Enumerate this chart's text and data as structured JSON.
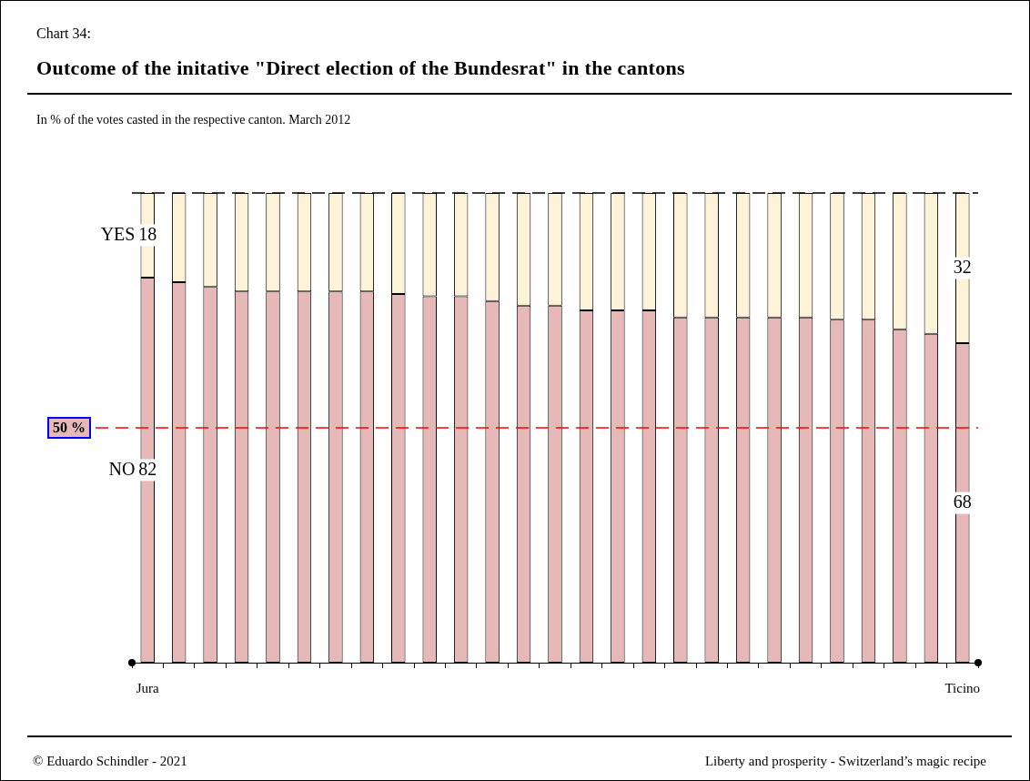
{
  "chart_data": {
    "type": "bar",
    "stacked": true,
    "title": "Outcome of the initative \"Direct election of the Bundesrat\" in the cantons",
    "subtitle": "In % of the votes casted in the respective canton. March 2012",
    "annotations": [
      "Chart 34:",
      "© Eduardo Schindler - 2021",
      "Liberty and prosperity - Switzerland’s magic recipe"
    ],
    "categories": [
      "Jura",
      null,
      null,
      null,
      null,
      null,
      null,
      null,
      null,
      null,
      null,
      null,
      null,
      null,
      null,
      null,
      null,
      null,
      null,
      null,
      null,
      null,
      null,
      null,
      null,
      null,
      "Ticino"
    ],
    "series": [
      {
        "name": "NO",
        "color": "#e6b9b8",
        "values": [
          82,
          81,
          80,
          79,
          79,
          79,
          79,
          79,
          78.5,
          78,
          78,
          77,
          76,
          76,
          75,
          75,
          75,
          73.5,
          73.5,
          73.5,
          73.5,
          73.5,
          73,
          73,
          71,
          70,
          68
        ],
        "value_labels": [
          "82",
          null,
          null,
          null,
          null,
          null,
          null,
          null,
          null,
          null,
          null,
          null,
          null,
          null,
          null,
          null,
          null,
          null,
          null,
          null,
          null,
          null,
          null,
          null,
          null,
          null,
          "68"
        ]
      },
      {
        "name": "YES",
        "color": "#fdf3d8",
        "values": [
          18,
          19,
          20,
          21,
          21,
          21,
          21,
          21,
          21.5,
          22,
          22,
          23,
          24,
          24,
          25,
          25,
          25,
          26.5,
          26.5,
          26.5,
          26.5,
          26.5,
          27,
          27,
          29,
          30,
          32
        ],
        "value_labels": [
          "18",
          null,
          null,
          null,
          null,
          null,
          null,
          null,
          null,
          null,
          null,
          null,
          null,
          null,
          null,
          null,
          null,
          null,
          null,
          null,
          null,
          null,
          null,
          null,
          null,
          null,
          "32"
        ]
      }
    ],
    "ylim": [
      0,
      100
    ],
    "tick_labels": "x",
    "legend": false,
    "grid": false,
    "ref_lines": [
      {
        "axis": "y",
        "value": 50,
        "label": "50 %",
        "color": "#ff0000",
        "line_style": "dashed"
      },
      {
        "axis": "y",
        "value": 100,
        "label": null,
        "color": "#000000",
        "line_style": "dashed"
      }
    ]
  }
}
